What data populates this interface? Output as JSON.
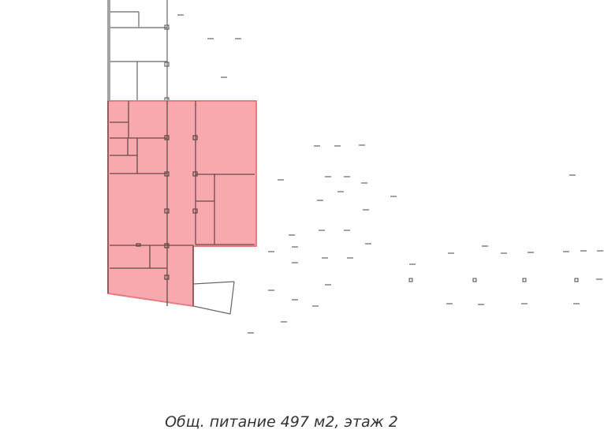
{
  "caption": "Общ. питание 497 м2, этаж 2",
  "highlight": {
    "label": "Общ. питание",
    "area_m2": 497,
    "floor": 2,
    "fill_color": "#f6a0a4",
    "stroke_color": "#e57c82"
  },
  "colors": {
    "wall": "#555555",
    "mark": "#444444",
    "background": "#ffffff"
  }
}
